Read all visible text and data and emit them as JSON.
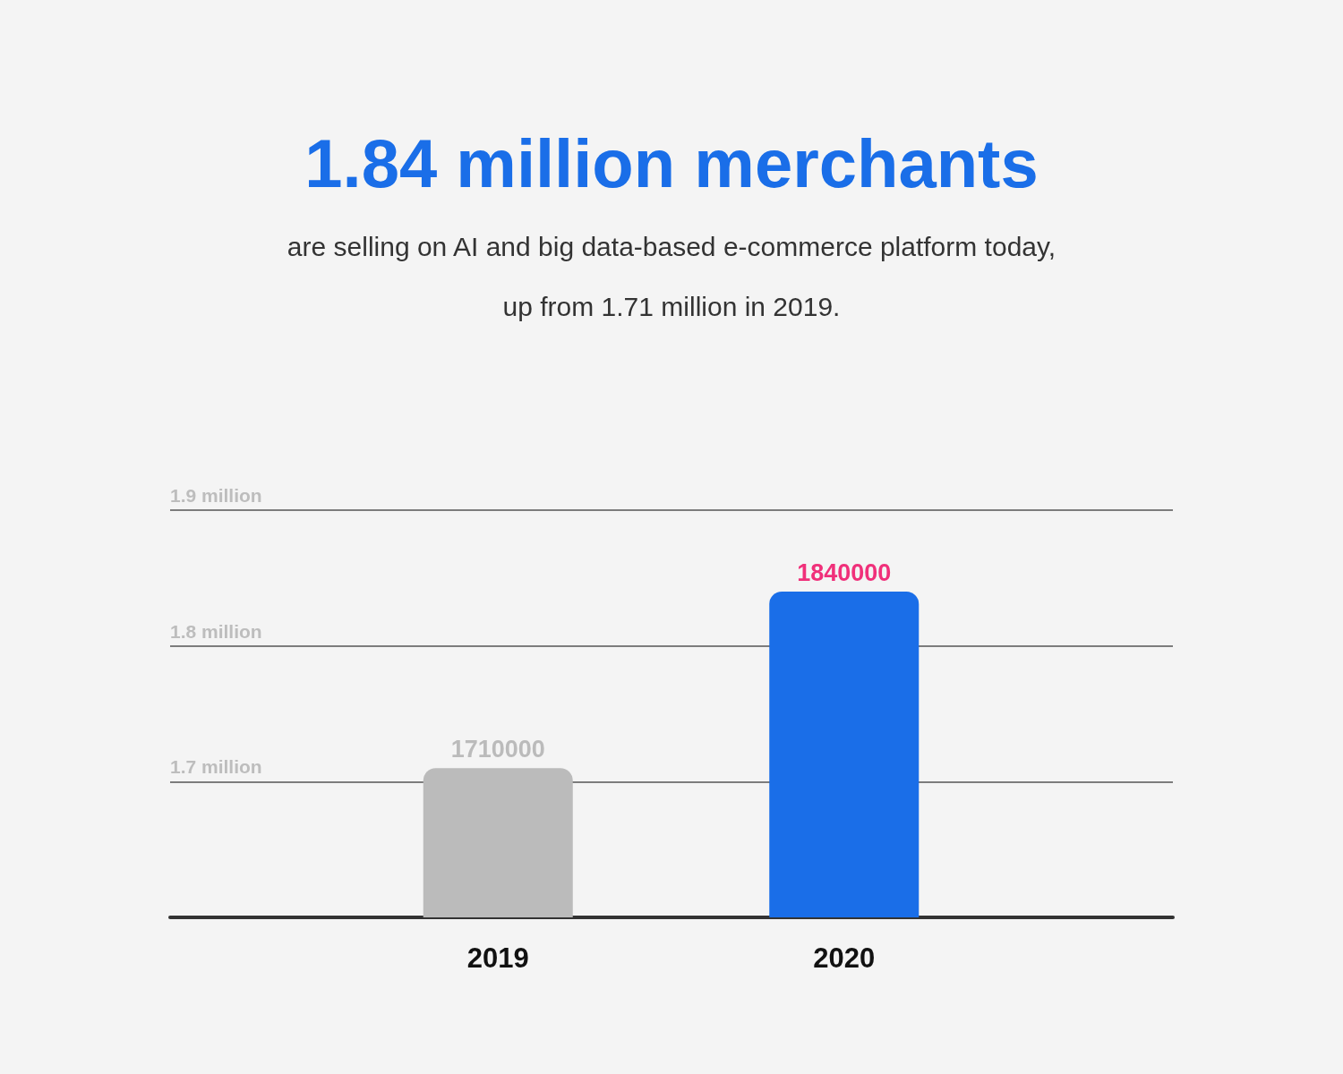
{
  "chart_data": {
    "type": "bar",
    "title": "1.84 million merchants",
    "subtitle": "are selling on AI and big data-based e-commerce platform today, up from 1.71 million in 2019.",
    "categories": [
      "2019",
      "2020"
    ],
    "values": [
      1710000,
      1840000
    ],
    "colors": [
      "#bbbbbb",
      "#1a6ee8"
    ],
    "ylim": [
      1600000,
      1900000
    ],
    "yticks": [
      {
        "value": 1700000,
        "label": "1.7 million"
      },
      {
        "value": 1800000,
        "label": "1.8 million"
      },
      {
        "value": 1900000,
        "label": "1.9 million"
      }
    ],
    "grid": "y",
    "data_labels": true
  }
}
